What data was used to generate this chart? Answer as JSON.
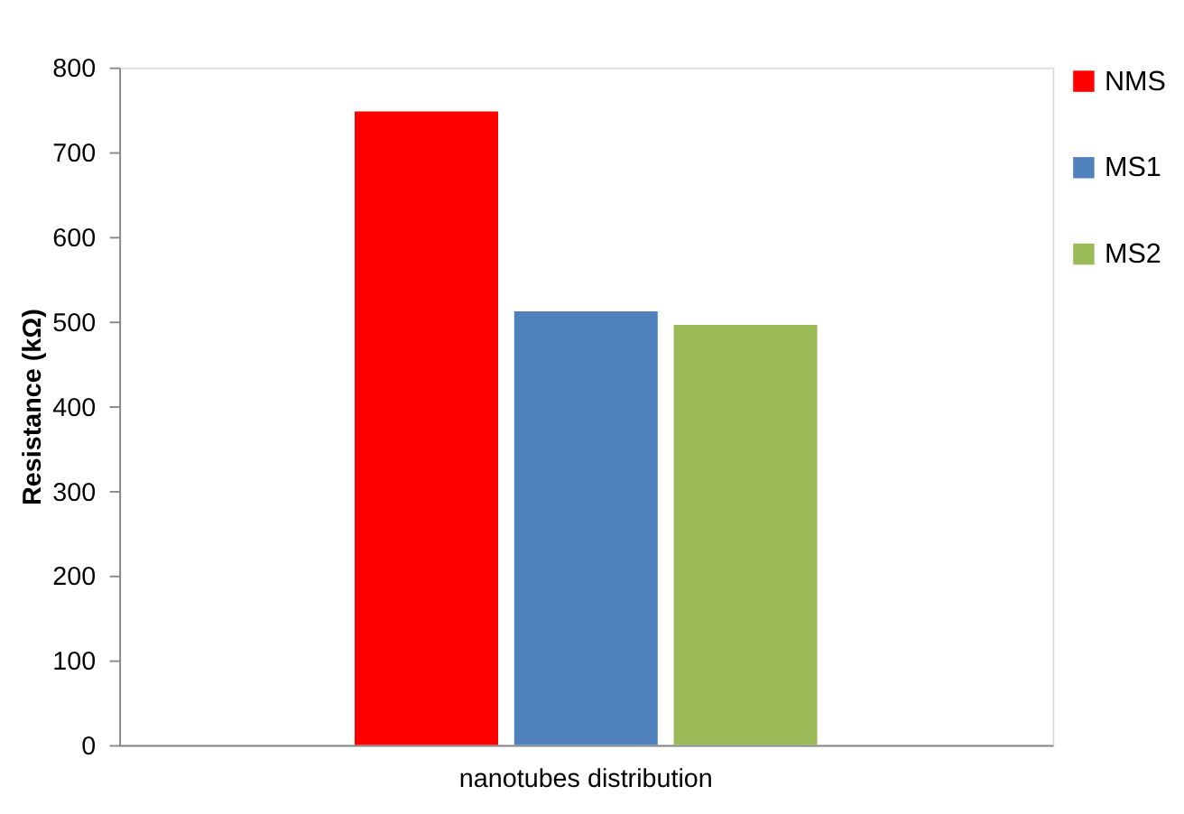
{
  "chart_data": {
    "type": "bar",
    "ylabel": "Resistance (kΩ)",
    "categories": [
      "nanotubes distribution"
    ],
    "series": [
      {
        "name": "NMS",
        "color": "#ff0000",
        "values": [
          748
        ]
      },
      {
        "name": "MS1",
        "color": "#4f81bd",
        "values": [
          512
        ]
      },
      {
        "name": "MS2",
        "color": "#9bbb59",
        "values": [
          496
        ]
      }
    ],
    "ylim": [
      0,
      800
    ],
    "yticks": [
      0,
      100,
      200,
      300,
      400,
      500,
      600,
      700,
      800
    ],
    "grid": false,
    "legend": "right"
  }
}
